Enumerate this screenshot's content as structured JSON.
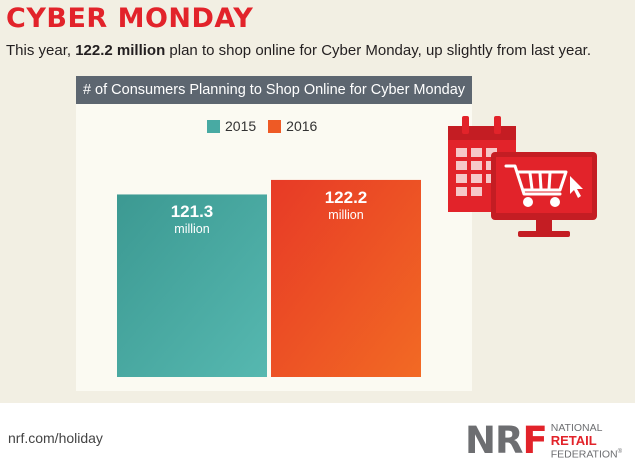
{
  "header": {
    "title": "CYBER MONDAY",
    "subtitle_pre": "This year, ",
    "subtitle_bold": "122.2 million",
    "subtitle_post": " plan to shop online for Cyber Monday, up slightly from last year."
  },
  "chart_data": {
    "type": "bar",
    "title": "# of Consumers Planning to Shop Online for Cyber Monday",
    "categories": [
      "2015",
      "2016"
    ],
    "values": [
      121.3,
      122.2
    ],
    "value_labels": [
      "121.3",
      "122.2"
    ],
    "value_unit": "million",
    "legend": [
      "2015",
      "2016"
    ],
    "legend_position": "top",
    "colors": [
      "#48aaa3",
      "#ee5a25"
    ],
    "grid": false
  },
  "illustration": {
    "icons": [
      "calendar-icon",
      "monitor-icon",
      "shopping-cart-icon",
      "cursor-icon"
    ]
  },
  "footer": {
    "url": "nrf.com/holiday",
    "logo_letters": [
      "N",
      "R",
      "F"
    ],
    "logo_words": [
      "NATIONAL",
      "RETAIL",
      "FEDERATION",
      "®"
    ]
  },
  "colors": {
    "accent_red": "#e2232a",
    "panel_header": "#5d6670",
    "background": "#f2efe3",
    "teal": "#48aaa3",
    "orange": "#ee5a25"
  }
}
